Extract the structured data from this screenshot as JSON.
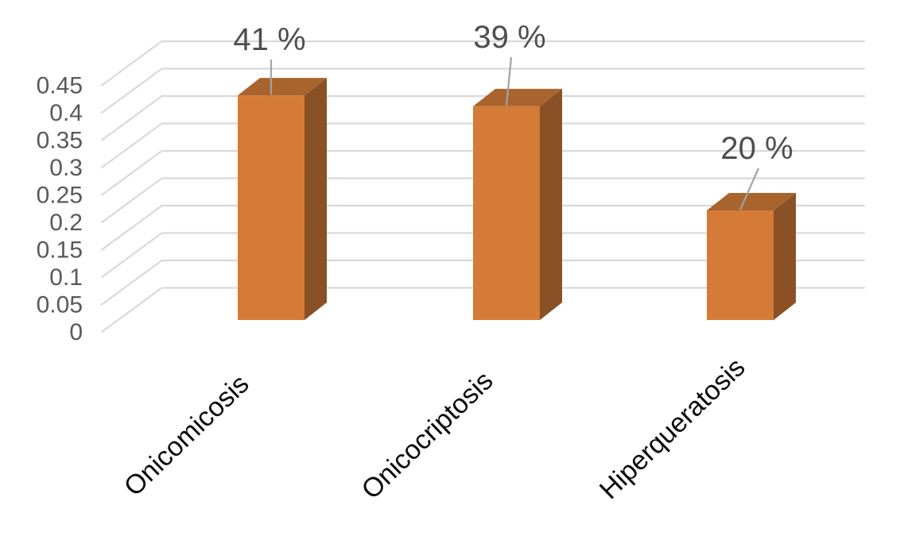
{
  "chart_data": {
    "type": "bar",
    "projection": "3d-column",
    "title": "",
    "xlabel": "",
    "ylabel": "",
    "categories": [
      "Onicomicosis",
      "Onicocriptosis",
      "Hiperqueratosis"
    ],
    "values": [
      0.41,
      0.39,
      0.2
    ],
    "data_labels": [
      "41 %",
      "39 %",
      "20 %"
    ],
    "ytick_labels": [
      "0",
      "0.05",
      "0.1",
      "0.15",
      "0.2",
      "0.25",
      "0.3",
      "0.35",
      "0.4",
      "0.45"
    ],
    "ylim": [
      0,
      0.45
    ],
    "grid": true,
    "legend": false,
    "colors": {
      "bar_front": "#D47B38",
      "bar_side": "#8A5126",
      "bar_top": "#A9642E",
      "gridline": "#D9D9D9",
      "leader_line": "#A3A3A3",
      "ytick_text": "#595959",
      "data_label_text": "#4E4E4E",
      "category_text": "#0A0A0A",
      "background": "#FFFFFF"
    }
  }
}
